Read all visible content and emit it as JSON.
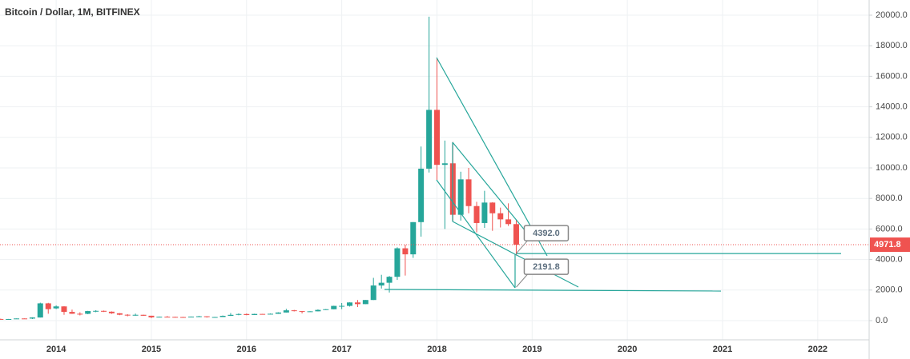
{
  "chart_data": {
    "type": "candlestick",
    "title": "Bitcoin / Dollar, 1M, BITFINEX",
    "xlim": [
      2013.41,
      2022.54
    ],
    "xticks": [
      2014,
      2015,
      2016,
      2017,
      2018,
      2019,
      2020,
      2021,
      2022
    ],
    "ylim": [
      -1257,
      20995
    ],
    "yticks": [
      {
        "value": 0,
        "label": "0.0"
      },
      {
        "value": 2000,
        "label": "2000.0"
      },
      {
        "value": 4000,
        "label": "4000.0"
      },
      {
        "value": 6000,
        "label": "6000.0"
      },
      {
        "value": 8000,
        "label": "8000.0"
      },
      {
        "value": 10000,
        "label": "10000.0"
      },
      {
        "value": 12000,
        "label": "12000.0"
      },
      {
        "value": 14000,
        "label": "14000.0"
      },
      {
        "value": 16000,
        "label": "16000.0"
      },
      {
        "value": 18000,
        "label": "18000.0"
      },
      {
        "value": 20000,
        "label": "20000.0"
      }
    ],
    "grid": true,
    "up_color": "#26a69a",
    "down_color": "#ef5350",
    "last_price": {
      "value": 4971.8,
      "label": "4971.8"
    },
    "annotations": [
      {
        "value": 4392,
        "label": "4392.0"
      },
      {
        "value": 2191.8,
        "label": "2191.8"
      }
    ],
    "candles": {
      "x": [
        2013.417,
        2013.5,
        2013.583,
        2013.667,
        2013.75,
        2013.833,
        2013.917,
        2014.0,
        2014.083,
        2014.167,
        2014.25,
        2014.333,
        2014.417,
        2014.5,
        2014.583,
        2014.667,
        2014.75,
        2014.833,
        2014.917,
        2015.0,
        2015.083,
        2015.167,
        2015.25,
        2015.333,
        2015.417,
        2015.5,
        2015.583,
        2015.667,
        2015.75,
        2015.833,
        2015.917,
        2016.0,
        2016.083,
        2016.167,
        2016.25,
        2016.333,
        2016.417,
        2016.5,
        2016.583,
        2016.667,
        2016.75,
        2016.833,
        2016.917,
        2017.0,
        2017.083,
        2017.167,
        2017.25,
        2017.333,
        2017.417,
        2017.5,
        2017.583,
        2017.667,
        2017.75,
        2017.833,
        2017.917,
        2018.0,
        2018.083,
        2018.167,
        2018.25,
        2018.333,
        2018.417,
        2018.5,
        2018.583,
        2018.667,
        2018.75,
        2018.833
      ],
      "open": [
        108,
        97,
        106,
        141,
        133,
        204,
        1130,
        800,
        930,
        570,
        450,
        445,
        625,
        640,
        585,
        480,
        385,
        340,
        380,
        320,
        215,
        255,
        245,
        235,
        230,
        263,
        284,
        230,
        236,
        314,
        378,
        430,
        368,
        437,
        416,
        448,
        531,
        673,
        622,
        575,
        609,
        701,
        745,
        964,
        965,
        1190,
        1080,
        1350,
        2300,
        2480,
        2870,
        4735,
        4340,
        6450,
        9950,
        13800,
        10200,
        10300,
        6930,
        9250,
        7500,
        6390,
        7730,
        7030,
        6630,
        6320
      ],
      "high": [
        130,
        111,
        141,
        145,
        220,
        1175,
        1165,
        1000,
        950,
        720,
        550,
        640,
        680,
        660,
        605,
        495,
        420,
        460,
        385,
        320,
        265,
        300,
        260,
        248,
        268,
        315,
        285,
        243,
        335,
        495,
        470,
        465,
        450,
        440,
        467,
        550,
        770,
        705,
        625,
        618,
        735,
        755,
        975,
        1155,
        1200,
        1350,
        1350,
        2800,
        3000,
        2920,
        4800,
        4975,
        6450,
        11400,
        19900,
        17200,
        11790,
        11700,
        9750,
        10000,
        7780,
        8500,
        7750,
        7400,
        7680,
        6600
      ],
      "low": [
        65,
        66,
        102,
        120,
        105,
        200,
        450,
        750,
        380,
        440,
        340,
        420,
        550,
        565,
        440,
        355,
        280,
        320,
        310,
        160,
        210,
        235,
        215,
        225,
        220,
        255,
        198,
        225,
        236,
        300,
        350,
        350,
        365,
        395,
        412,
        440,
        530,
        600,
        470,
        570,
        605,
        690,
        740,
        750,
        920,
        890,
        1080,
        1350,
        2100,
        1840,
        2670,
        2950,
        4110,
        5500,
        9700,
        9200,
        6000,
        6500,
        6550,
        7030,
        5780,
        6070,
        5880,
        6100,
        6200,
        4260
      ],
      "close": [
        97,
        106,
        141,
        133,
        204,
        1130,
        750,
        930,
        570,
        450,
        445,
        625,
        640,
        585,
        480,
        385,
        340,
        380,
        320,
        215,
        255,
        245,
        235,
        230,
        263,
        284,
        230,
        236,
        314,
        378,
        430,
        368,
        437,
        416,
        448,
        531,
        673,
        622,
        575,
        609,
        701,
        745,
        964,
        965,
        1190,
        1080,
        1350,
        2300,
        2480,
        2870,
        4735,
        4340,
        6450,
        9950,
        13800,
        10200,
        10300,
        6930,
        9250,
        7500,
        6390,
        7730,
        7030,
        6630,
        6320,
        4971.8
      ]
    }
  }
}
